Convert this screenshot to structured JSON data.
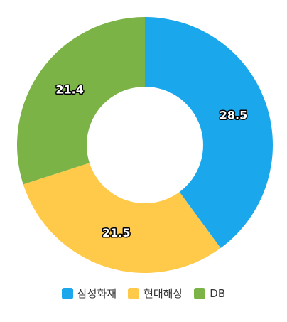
{
  "chart_data": {
    "type": "donut",
    "categories": [
      "삼성화재",
      "현대해상",
      "DB"
    ],
    "values": [
      28.5,
      21.5,
      21.4
    ],
    "colors": [
      "#1aa7ec",
      "#ffc94a",
      "#7cb347"
    ]
  }
}
